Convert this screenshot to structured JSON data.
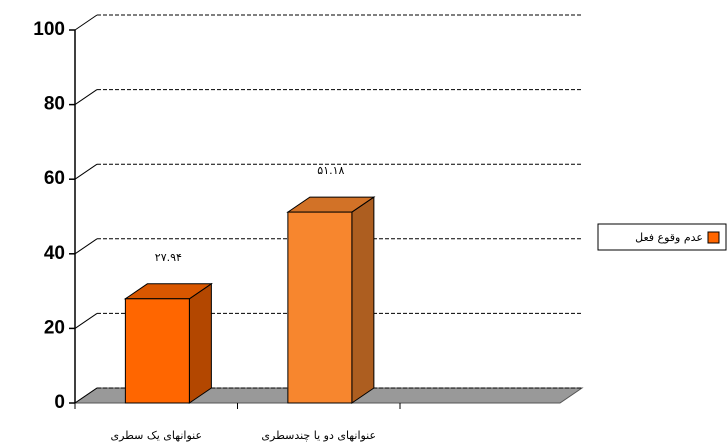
{
  "chart_data": {
    "type": "bar3d",
    "categories": [
      "عنوانهای یک سطری",
      "عنوانهای دو  یا چندسطری"
    ],
    "series": [
      {
        "name": "عدم وقوع فعل",
        "color": "#ff6600",
        "colors": [
          "#ff6600",
          "#f7862e"
        ],
        "values": [
          27.94,
          51.18
        ],
        "value_labels": [
          "۲۷.۹۴",
          "۵۱.۱۸"
        ]
      }
    ],
    "ylim": [
      0,
      100
    ],
    "yticks": [
      0,
      20,
      40,
      60,
      80,
      100
    ],
    "grid": true,
    "legend": "right"
  }
}
